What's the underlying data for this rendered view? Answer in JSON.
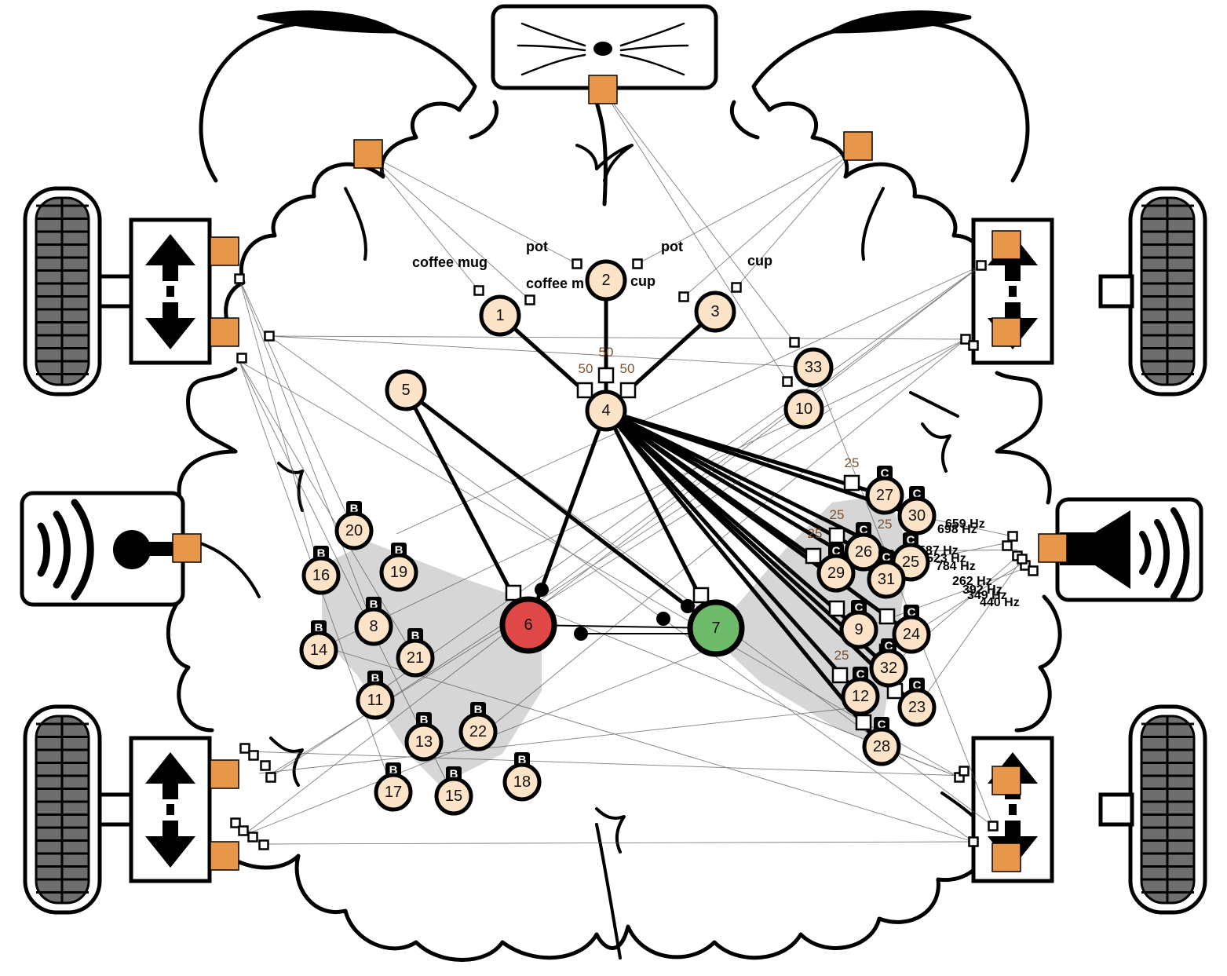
{
  "colors": {
    "neuron_fill": "#fde3c8",
    "neuron_stroke": "#000000",
    "inhibit_neuron": "#e04848",
    "excite_neuron": "#6dba6a",
    "sensor_orange": "#e8974a",
    "weight_text": "#7a5230",
    "shade": "#d6d6d6",
    "tire_tread": "#6e6e6e"
  },
  "sensors": {
    "object_words": [
      "coffee mug",
      "pot",
      "coffee m",
      "cup",
      "pot",
      "cup"
    ],
    "tone_words": [
      "659 Hz",
      "698 Hz",
      "587 Hz",
      "523 Hz",
      "784 Hz",
      "262 Hz",
      "392 Hz",
      "349 Hz",
      "440 Hz"
    ]
  },
  "weights": {
    "top": [
      "50",
      "50",
      "50"
    ],
    "side": [
      "25",
      "25",
      "25",
      "25",
      "25"
    ]
  },
  "neurons": [
    {
      "id": "1",
      "tag": ""
    },
    {
      "id": "2",
      "tag": ""
    },
    {
      "id": "3",
      "tag": ""
    },
    {
      "id": "4",
      "tag": ""
    },
    {
      "id": "5",
      "tag": ""
    },
    {
      "id": "6",
      "tag": ""
    },
    {
      "id": "7",
      "tag": ""
    },
    {
      "id": "8",
      "tag": "B"
    },
    {
      "id": "9",
      "tag": "C"
    },
    {
      "id": "10",
      "tag": ""
    },
    {
      "id": "11",
      "tag": "B"
    },
    {
      "id": "12",
      "tag": "C"
    },
    {
      "id": "13",
      "tag": "B"
    },
    {
      "id": "14",
      "tag": "B"
    },
    {
      "id": "15",
      "tag": "B"
    },
    {
      "id": "16",
      "tag": "B"
    },
    {
      "id": "17",
      "tag": "B"
    },
    {
      "id": "18",
      "tag": "B"
    },
    {
      "id": "19",
      "tag": "B"
    },
    {
      "id": "20",
      "tag": "B"
    },
    {
      "id": "21",
      "tag": "B"
    },
    {
      "id": "22",
      "tag": "B"
    },
    {
      "id": "23",
      "tag": "C"
    },
    {
      "id": "24",
      "tag": "C"
    },
    {
      "id": "25",
      "tag": "C"
    },
    {
      "id": "26",
      "tag": "C"
    },
    {
      "id": "27",
      "tag": "C"
    },
    {
      "id": "28",
      "tag": "C"
    },
    {
      "id": "29",
      "tag": "C"
    },
    {
      "id": "30",
      "tag": "C"
    },
    {
      "id": "31",
      "tag": "C"
    },
    {
      "id": "32",
      "tag": "C"
    },
    {
      "id": "33",
      "tag": ""
    }
  ],
  "edges": [
    [
      "1",
      "4"
    ],
    [
      "2",
      "4"
    ],
    [
      "3",
      "4"
    ],
    [
      "4",
      "6"
    ],
    [
      "4",
      "7"
    ],
    [
      "5",
      "6"
    ],
    [
      "5",
      "7"
    ],
    [
      "6",
      "7"
    ],
    [
      "4",
      "27"
    ],
    [
      "4",
      "30"
    ],
    [
      "4",
      "26"
    ],
    [
      "4",
      "29"
    ],
    [
      "4",
      "25"
    ],
    [
      "4",
      "31"
    ],
    [
      "4",
      "9"
    ],
    [
      "4",
      "24"
    ],
    [
      "4",
      "32"
    ],
    [
      "4",
      "12"
    ],
    [
      "4",
      "23"
    ],
    [
      "4",
      "28"
    ]
  ]
}
